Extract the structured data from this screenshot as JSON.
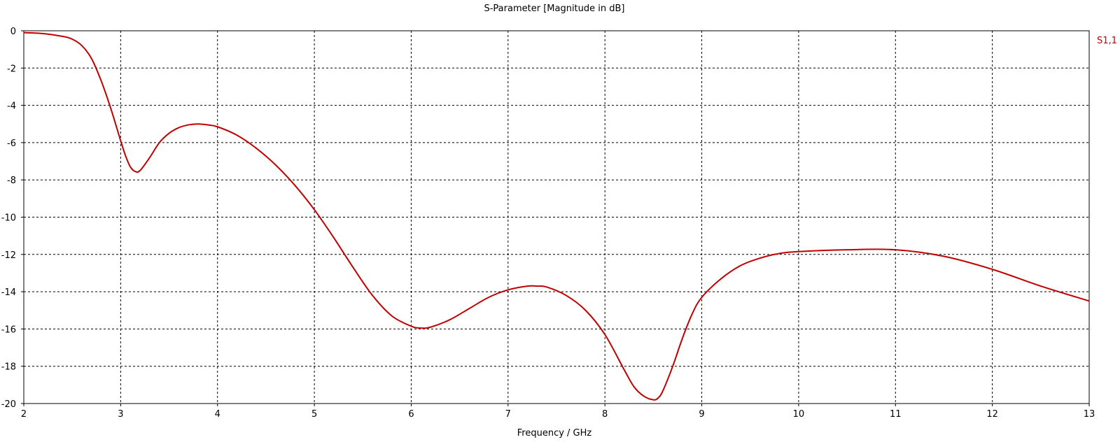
{
  "chart_data": {
    "type": "line",
    "title": "S-Parameter [Magnitude in dB]",
    "xlabel": "Frequency / GHz",
    "ylabel": "",
    "xlim": [
      2,
      13
    ],
    "ylim": [
      -20,
      0
    ],
    "xticks": [
      2,
      3,
      4,
      5,
      6,
      7,
      8,
      9,
      10,
      11,
      12,
      13
    ],
    "yticks": [
      0,
      -2,
      -4,
      -6,
      -8,
      -10,
      -12,
      -14,
      -16,
      -18,
      -20
    ],
    "grid": true,
    "legend_position": "top-right",
    "series": [
      {
        "name": "S1,1",
        "color": "#c00000",
        "x": [
          2.0,
          2.2,
          2.4,
          2.5,
          2.6,
          2.7,
          2.8,
          2.9,
          3.0,
          3.05,
          3.1,
          3.15,
          3.2,
          3.3,
          3.4,
          3.5,
          3.6,
          3.7,
          3.8,
          3.9,
          4.0,
          4.2,
          4.4,
          4.6,
          4.8,
          5.0,
          5.2,
          5.4,
          5.6,
          5.8,
          6.0,
          6.1,
          6.2,
          6.4,
          6.6,
          6.8,
          7.0,
          7.2,
          7.3,
          7.4,
          7.6,
          7.8,
          8.0,
          8.2,
          8.3,
          8.4,
          8.5,
          8.55,
          8.6,
          8.7,
          8.8,
          8.9,
          9.0,
          9.2,
          9.4,
          9.6,
          9.8,
          10.0,
          10.5,
          11.0,
          11.5,
          12.0,
          12.5,
          13.0
        ],
        "y": [
          -0.1,
          -0.15,
          -0.3,
          -0.45,
          -0.8,
          -1.5,
          -2.7,
          -4.2,
          -5.9,
          -6.7,
          -7.3,
          -7.55,
          -7.5,
          -6.8,
          -6.0,
          -5.5,
          -5.2,
          -5.05,
          -5.0,
          -5.05,
          -5.15,
          -5.6,
          -6.3,
          -7.2,
          -8.3,
          -9.6,
          -11.1,
          -12.7,
          -14.2,
          -15.3,
          -15.85,
          -15.95,
          -15.9,
          -15.5,
          -14.9,
          -14.3,
          -13.9,
          -13.7,
          -13.7,
          -13.75,
          -14.2,
          -15.0,
          -16.3,
          -18.2,
          -19.1,
          -19.6,
          -19.8,
          -19.7,
          -19.3,
          -18.0,
          -16.5,
          -15.2,
          -14.3,
          -13.3,
          -12.6,
          -12.2,
          -11.95,
          -11.85,
          -11.75,
          -11.75,
          -12.1,
          -12.8,
          -13.7,
          -14.5
        ]
      }
    ]
  }
}
